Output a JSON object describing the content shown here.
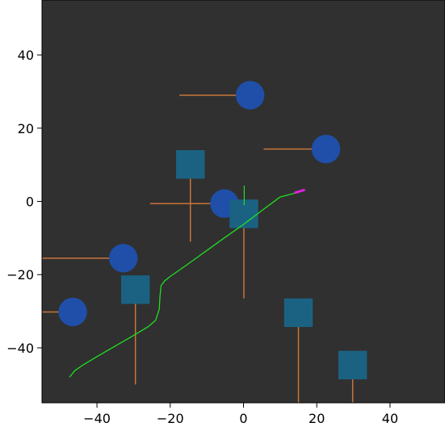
{
  "colors": {
    "plot_background": "#303030",
    "circle": "#1f4fa8",
    "square": "#1b6282",
    "whisker": "#c9753a",
    "path": "#22dd22",
    "path_end": "#dd22dd",
    "figure_background": "#ffffff"
  },
  "chart_data": {
    "type": "scatter",
    "title": "",
    "xlabel": "",
    "ylabel": "",
    "xlim": [
      -55,
      55
    ],
    "ylim": [
      -55,
      55
    ],
    "grid": false,
    "x_ticks": [
      -40,
      -20,
      0,
      20,
      40
    ],
    "y_ticks": [
      40,
      20,
      0,
      -20,
      -40
    ],
    "x_tick_labels": [
      "−40",
      "−20",
      "0",
      "20",
      "40"
    ],
    "y_tick_labels": [
      "40",
      "20",
      "0",
      "−20",
      "−40"
    ],
    "series": [
      {
        "marker": "circle",
        "points": [
          {
            "x": 1.8,
            "y": 29,
            "whisker": [
              -17.5,
              4
            ]
          },
          {
            "x": 22.5,
            "y": 14.3,
            "whisker": [
              5.5,
              25
            ]
          },
          {
            "x": -5.2,
            "y": -0.6,
            "whisker": [
              -25.5,
              -1.5
            ]
          },
          {
            "x": -32.8,
            "y": -15.5,
            "whisker": [
              -55,
              -30
            ]
          },
          {
            "x": -46.6,
            "y": -30.2,
            "whisker": [
              -55,
              -43.5
            ]
          }
        ]
      },
      {
        "marker": "square",
        "points": [
          {
            "x": -14.5,
            "y": 10.1,
            "whisker": [
              -11,
              10.1
            ]
          },
          {
            "x": 0.1,
            "y": -3.4,
            "whisker": [
              -26.5,
              -3.4
            ]
          },
          {
            "x": -29.5,
            "y": -24.1,
            "whisker": [
              -50,
              -24.1
            ]
          },
          {
            "x": 15,
            "y": -30.4,
            "whisker": [
              -55,
              -30.4
            ]
          },
          {
            "x": 29.8,
            "y": -44.7,
            "whisker": [
              -55,
              -44.7
            ]
          }
        ]
      }
    ],
    "path": [
      [
        -47.5,
        -48
      ],
      [
        -46,
        -46.2
      ],
      [
        -44,
        -44.8
      ],
      [
        -40,
        -42.4
      ],
      [
        -35,
        -39.5
      ],
      [
        -30,
        -36.6
      ],
      [
        -26,
        -34.2
      ],
      [
        -24,
        -32.5
      ],
      [
        -23,
        -29.5
      ],
      [
        -22.8,
        -26
      ],
      [
        -22.5,
        -23
      ],
      [
        -21.5,
        -21.7
      ],
      [
        -20,
        -20.5
      ],
      [
        -15,
        -17
      ],
      [
        -10,
        -13.4
      ],
      [
        -5,
        -9.8
      ],
      [
        0,
        -6.3
      ],
      [
        5,
        -2.5
      ],
      [
        10,
        1.2
      ],
      [
        14.2,
        2.3
      ]
    ],
    "path_end_segment": [
      [
        14.2,
        2.4
      ],
      [
        16.5,
        3.1
      ]
    ],
    "heading_line": [
      [
        0.2,
        4.3
      ],
      [
        0.2,
        -1
      ]
    ]
  }
}
